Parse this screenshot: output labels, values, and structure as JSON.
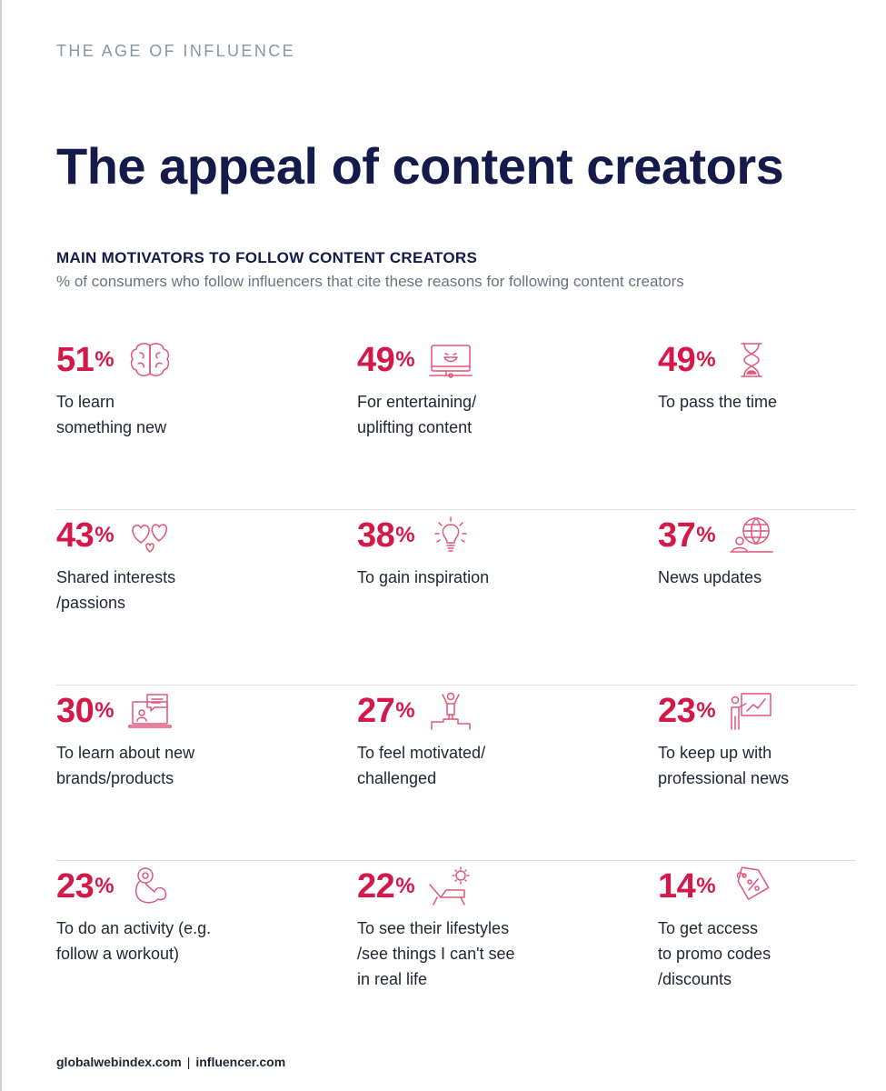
{
  "header": "THE AGE OF INFLUENCE",
  "title": "The appeal of content creators",
  "subtitle": "MAIN MOTIVATORS TO FOLLOW CONTENT CREATORS",
  "description": "% of consumers who follow influencers that cite these reasons for following content creators",
  "accent_color": "#d3184a",
  "title_color": "#141a4a",
  "items": [
    {
      "value": "51",
      "label": "To learn\nsomething new",
      "icon": "brain-icon"
    },
    {
      "value": "49",
      "label": "For entertaining/\nuplifting content",
      "icon": "laughing-screen-icon"
    },
    {
      "value": "49",
      "label": "To pass the time",
      "icon": "hourglass-icon"
    },
    {
      "value": "43",
      "label": "Shared interests\n/passions",
      "icon": "hearts-icon"
    },
    {
      "value": "38",
      "label": "To gain inspiration",
      "icon": "lightbulb-icon"
    },
    {
      "value": "37",
      "label": "News updates",
      "icon": "globe-person-icon"
    },
    {
      "value": "30",
      "label": "To learn about new\nbrands/products",
      "icon": "laptop-chat-icon"
    },
    {
      "value": "27",
      "label": "To feel motivated/\nchallenged",
      "icon": "podium-winner-icon"
    },
    {
      "value": "23",
      "label": "To keep up with\nprofessional news",
      "icon": "presentation-icon"
    },
    {
      "value": "23",
      "label": "To do an activity (e.g.\nfollow a workout)",
      "icon": "arm-dumbbell-icon"
    },
    {
      "value": "22",
      "label": "To see their lifestyles\n/see things I can't see\nin real life",
      "icon": "sun-lounger-icon"
    },
    {
      "value": "14",
      "label": "To get access\nto promo codes\n/discounts",
      "icon": "discount-tag-icon"
    }
  ],
  "percent_sign": "%",
  "footer": {
    "left": "globalwebindex.com",
    "separator": "|",
    "right": "influencer.com"
  }
}
